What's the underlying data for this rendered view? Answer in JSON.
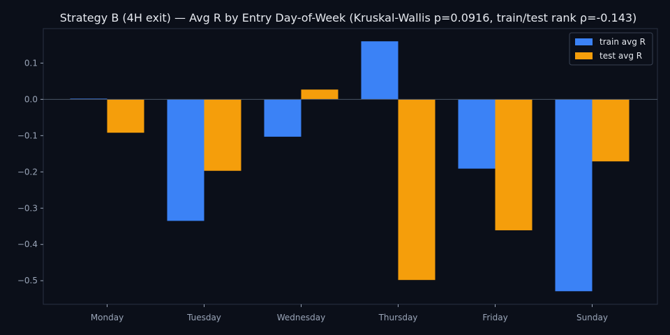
{
  "chart_data": {
    "type": "bar",
    "title": "Strategy B (4H exit) — Avg R by Entry Day-of-Week (Kruskal-Wallis p=0.0916, train/test rank ρ=-0.143)",
    "xlabel": "",
    "ylabel": "",
    "categories": [
      "Monday",
      "Tuesday",
      "Wednesday",
      "Thursday",
      "Friday",
      "Sunday"
    ],
    "series": [
      {
        "name": "train avg R",
        "color": "#3b82f6",
        "values": [
          0.002,
          -0.335,
          -0.103,
          0.16,
          -0.191,
          -0.529
        ]
      },
      {
        "name": "test avg R",
        "color": "#f59e0b",
        "values": [
          -0.092,
          -0.197,
          0.027,
          -0.498,
          -0.361,
          -0.171
        ]
      }
    ],
    "ylim": [
      -0.565,
      0.195
    ],
    "yticks": [
      0.1,
      0.0,
      -0.1,
      -0.2,
      -0.3,
      -0.4,
      -0.5
    ],
    "ytick_labels": [
      "0.1",
      "0.0",
      "−0.1",
      "−0.2",
      "−0.3",
      "−0.4",
      "−0.5"
    ],
    "grid": false,
    "zero_line": true,
    "legend_position": "top-right",
    "colors": {
      "background": "#0b0f19",
      "axes_edge": "#2a3142",
      "zero_line": "#4b5566",
      "tick_text": "#9aa5b8",
      "title_text": "#e6e9ef",
      "legend_bg": "#0b0f19",
      "legend_border": "#3a4254"
    }
  }
}
